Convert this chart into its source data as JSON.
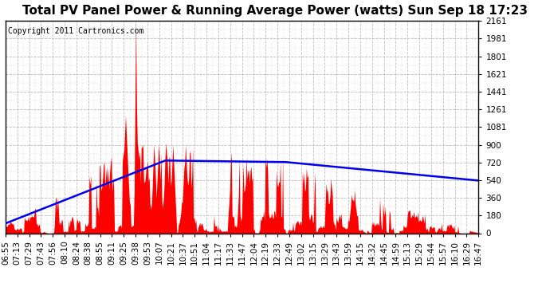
{
  "title": "Total PV Panel Power & Running Average Power (watts) Sun Sep 18 17:23",
  "copyright": "Copyright 2011 Cartronics.com",
  "ymin": 0.0,
  "ymax": 2161.1,
  "yticks": [
    0.0,
    180.1,
    360.2,
    540.3,
    720.4,
    900.5,
    1080.6,
    1260.7,
    1440.8,
    1620.9,
    1801.0,
    1981.0,
    2161.1
  ],
  "xtick_labels": [
    "06:55",
    "07:13",
    "07:29",
    "07:43",
    "07:56",
    "08:10",
    "08:24",
    "08:38",
    "08:55",
    "09:11",
    "09:25",
    "09:38",
    "09:53",
    "10:07",
    "10:21",
    "10:37",
    "10:51",
    "11:04",
    "11:17",
    "11:33",
    "11:47",
    "12:04",
    "12:19",
    "12:33",
    "12:49",
    "13:02",
    "13:15",
    "13:29",
    "13:43",
    "13:59",
    "14:15",
    "14:32",
    "14:45",
    "14:59",
    "15:13",
    "15:29",
    "15:44",
    "15:57",
    "16:10",
    "16:29",
    "16:47"
  ],
  "bar_color": "#FF0000",
  "line_color": "#0000EE",
  "background_color": "#FFFFFF",
  "grid_color": "#BBBBBB",
  "title_fontsize": 11,
  "copyright_fontsize": 7,
  "tick_fontsize": 7.5
}
